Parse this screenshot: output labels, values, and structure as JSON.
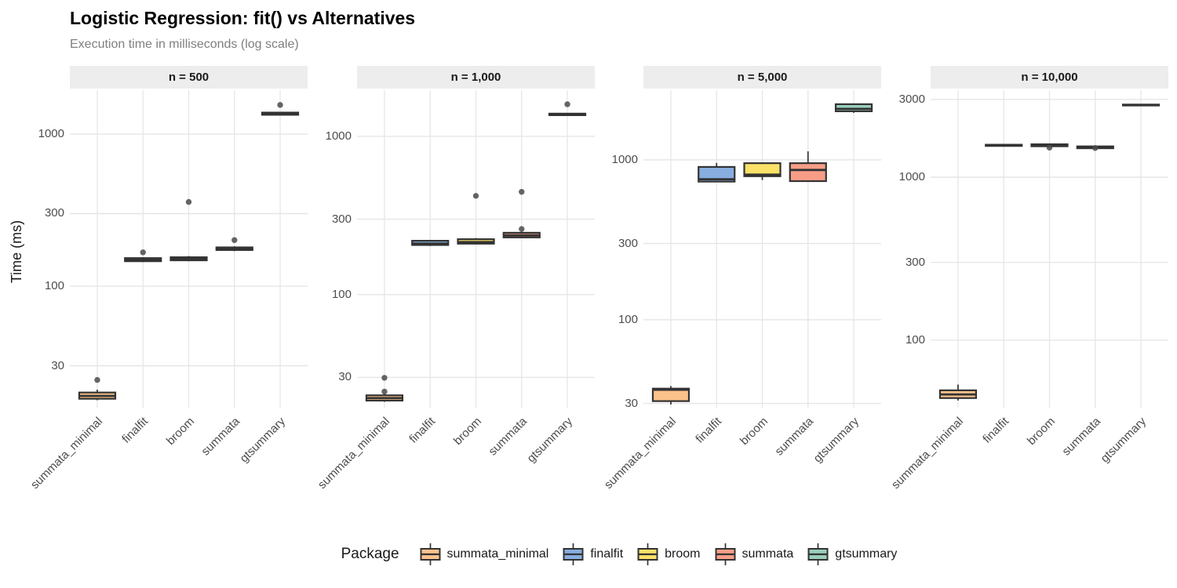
{
  "chart_data": {
    "type": "boxplot",
    "title": "Logistic Regression: fit() vs Alternatives",
    "subtitle": "Execution time in milliseconds (log scale)",
    "ylabel": "Time (ms)",
    "legend_title": "Package",
    "scale": "log10",
    "grid": "major-only",
    "legend_position": "bottom",
    "categories": [
      "summata_minimal",
      "finalfit",
      "broom",
      "summata",
      "gtsummary"
    ],
    "colors": {
      "summata_minimal": "#FBC28C",
      "finalfit": "#87AEDF",
      "broom": "#FAE167",
      "summata": "#F89E88",
      "gtsummary": "#99CFBA"
    },
    "box_border_color": "#333333",
    "outlier_color": "#4a4a4a",
    "gridline_color": "#e6e6e6",
    "strip_bg_color": "#ededed",
    "facets": [
      {
        "label": "n = 500",
        "y_ticks": [
          30,
          100,
          300,
          1000
        ],
        "ylim": [
          15.9,
          1945
        ],
        "boxes": [
          {
            "package": "summata_minimal",
            "low": 17.8,
            "q1": 18.2,
            "median": 19.0,
            "q3": 20.0,
            "high": 20.9,
            "outliers": [
              24.2
            ]
          },
          {
            "package": "finalfit",
            "low": 144,
            "q1": 146,
            "median": 149,
            "q3": 153,
            "high": 155,
            "outliers": [
              167
            ]
          },
          {
            "package": "broom",
            "low": 146,
            "q1": 148,
            "median": 151,
            "q3": 155,
            "high": 158,
            "outliers": [
              358
            ]
          },
          {
            "package": "summata",
            "low": 170,
            "q1": 173,
            "median": 176,
            "q3": 180,
            "high": 183,
            "outliers": [
              201
            ]
          },
          {
            "package": "gtsummary",
            "low": 1325,
            "q1": 1340,
            "median": 1360,
            "q3": 1385,
            "high": 1400,
            "outliers": [
              1555
            ]
          }
        ]
      },
      {
        "label": "n = 1,000",
        "y_ticks": [
          30,
          100,
          300,
          1000
        ],
        "ylim": [
          19.3,
          1960
        ],
        "boxes": [
          {
            "package": "summata_minimal",
            "low": 21.0,
            "q1": 21.4,
            "median": 22.2,
            "q3": 23.1,
            "high": 23.6,
            "outliers": [
              29.8,
              24.4
            ]
          },
          {
            "package": "finalfit",
            "low": 203,
            "q1": 206,
            "median": 210,
            "q3": 219,
            "high": 222,
            "outliers": []
          },
          {
            "package": "broom",
            "low": 207,
            "q1": 210,
            "median": 215,
            "q3": 224,
            "high": 228,
            "outliers": [
              421
            ]
          },
          {
            "package": "summata",
            "low": 227,
            "q1": 230,
            "median": 237,
            "q3": 246,
            "high": 250,
            "outliers": [
              260,
              446
            ]
          },
          {
            "package": "gtsummary",
            "low": 1350,
            "q1": 1362,
            "median": 1377,
            "q3": 1393,
            "high": 1405,
            "outliers": [
              1597
            ]
          }
        ]
      },
      {
        "label": "n = 5,000",
        "y_ticks": [
          30,
          100,
          300,
          1000
        ],
        "ylim": [
          28.2,
          2727
        ],
        "boxes": [
          {
            "package": "summata_minimal",
            "low": 29.5,
            "q1": 31.0,
            "median": 36.5,
            "q3": 37.1,
            "high": 38.5,
            "outliers": []
          },
          {
            "package": "finalfit",
            "low": 728,
            "q1": 731,
            "median": 756,
            "q3": 903,
            "high": 957,
            "outliers": []
          },
          {
            "package": "broom",
            "low": 747,
            "q1": 790,
            "median": 808,
            "q3": 953,
            "high": 955,
            "outliers": []
          },
          {
            "package": "summata",
            "low": 730,
            "q1": 736,
            "median": 864,
            "q3": 953,
            "high": 1130,
            "outliers": []
          },
          {
            "package": "gtsummary",
            "low": 1967,
            "q1": 2012,
            "median": 2082,
            "q3": 2228,
            "high": 2240,
            "outliers": []
          }
        ]
      },
      {
        "label": "n = 10,000",
        "y_ticks": [
          100,
          300,
          1000,
          3000
        ],
        "ylim": [
          38.5,
          3420
        ],
        "boxes": [
          {
            "package": "summata_minimal",
            "low": 42.6,
            "q1": 44.1,
            "median": 46.4,
            "q3": 49.2,
            "high": 53.4,
            "outliers": []
          },
          {
            "package": "finalfit",
            "low": 1545,
            "q1": 1555,
            "median": 1568,
            "q3": 1582,
            "high": 1590,
            "outliers": []
          },
          {
            "package": "broom",
            "low": 1540,
            "q1": 1548,
            "median": 1567,
            "q3": 1592,
            "high": 1598,
            "outliers": [
              1518
            ]
          },
          {
            "package": "summata",
            "low": 1495,
            "q1": 1505,
            "median": 1522,
            "q3": 1545,
            "high": 1550,
            "outliers": [
              1510
            ]
          },
          {
            "package": "gtsummary",
            "low": 2745,
            "q1": 2755,
            "median": 2770,
            "q3": 2790,
            "high": 2800,
            "outliers": []
          }
        ]
      }
    ]
  }
}
